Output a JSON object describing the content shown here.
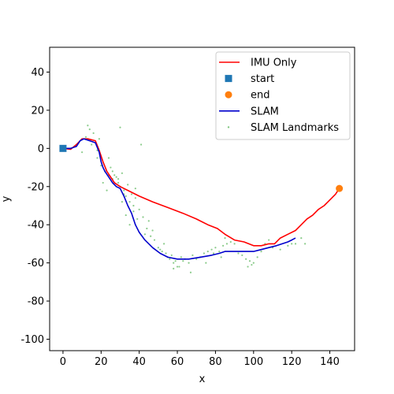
{
  "chart_data": {
    "type": "line",
    "xlabel": "x",
    "ylabel": "y",
    "xlim": [
      -7,
      153
    ],
    "ylim": [
      -106,
      53
    ],
    "x_ticks": [
      0,
      20,
      40,
      60,
      80,
      100,
      120,
      140
    ],
    "y_ticks": [
      40,
      20,
      0,
      -20,
      -40,
      -60,
      -80,
      -100
    ],
    "legend_position": "top-right",
    "series": [
      {
        "name": "IMU Only",
        "kind": "line",
        "color": "#ff0000",
        "x": [
          0,
          4,
          7,
          10,
          13,
          17,
          19,
          21,
          23,
          25,
          27,
          30,
          34,
          40,
          47,
          55,
          63,
          70,
          76,
          81,
          85,
          90,
          95,
          100,
          104,
          108,
          111,
          114,
          118,
          122,
          125,
          128,
          131,
          134,
          137,
          140,
          143,
          145
        ],
        "y": [
          0,
          -0.5,
          2,
          5,
          5,
          4,
          -1,
          -7,
          -12,
          -15,
          -18,
          -20,
          -22,
          -25,
          -28,
          -31,
          -34,
          -37,
          -40,
          -42,
          -45,
          -48,
          -49,
          -51,
          -51,
          -50,
          -50,
          -47,
          -45,
          -43,
          -40,
          -37,
          -35,
          -32,
          -30,
          -27,
          -24,
          -21
        ]
      },
      {
        "name": "start",
        "kind": "marker-square",
        "color": "#1f77b4",
        "x": [
          0
        ],
        "y": [
          0
        ]
      },
      {
        "name": "end",
        "kind": "marker-circle",
        "color": "#ff7f0e",
        "x": [
          145
        ],
        "y": [
          -21
        ]
      },
      {
        "name": "SLAM",
        "kind": "line",
        "color": "#0000cc",
        "x": [
          0,
          4,
          7,
          9,
          11,
          14,
          17,
          19,
          20,
          21,
          22,
          24,
          26,
          28,
          30,
          32,
          34,
          36,
          38,
          40,
          43,
          47,
          51,
          55,
          60,
          66,
          72,
          78,
          82,
          85,
          89,
          92,
          96,
          100,
          104,
          108,
          112,
          115,
          118,
          120,
          122
        ],
        "y": [
          0,
          0,
          1,
          4,
          5,
          4,
          3,
          -2,
          -7,
          -10,
          -12,
          -15,
          -18,
          -20,
          -21,
          -25,
          -30,
          -34,
          -40,
          -44,
          -48,
          -52,
          -55,
          -57,
          -58,
          -58,
          -57,
          -56,
          -55,
          -54,
          -54,
          -54,
          -54,
          -54,
          -53,
          -52,
          -51,
          -50,
          -49,
          -48,
          -47
        ]
      },
      {
        "name": "SLAM Landmarks",
        "kind": "scatter",
        "color": "#2ca02c",
        "x": [
          10,
          12,
          14,
          15,
          18,
          20,
          22,
          24,
          25,
          26,
          28,
          29,
          30,
          31,
          32,
          33,
          34,
          35,
          36,
          37,
          38,
          40,
          42,
          44,
          46,
          48,
          50,
          52,
          54,
          55,
          56,
          57,
          58,
          59,
          60,
          62,
          64,
          66,
          68,
          70,
          72,
          74,
          76,
          78,
          80,
          82,
          84,
          86,
          88,
          90,
          92,
          94,
          96,
          98,
          100,
          102,
          104,
          106,
          110,
          114,
          118,
          122,
          125,
          127,
          16,
          19,
          21,
          23,
          27,
          30,
          35,
          41,
          33,
          43,
          31,
          37,
          45,
          53,
          61,
          67,
          75,
          85,
          97,
          108,
          120,
          13,
          18,
          24,
          26,
          29,
          32,
          38,
          39,
          47,
          51,
          58,
          63,
          79,
          83,
          99
        ],
        "y": [
          -2,
          6,
          10,
          2,
          -5,
          -9,
          -12,
          -14,
          -10,
          -16,
          -15,
          -18,
          -20,
          -13,
          -22,
          -25,
          -19,
          -28,
          -24,
          -30,
          -26,
          -32,
          -36,
          -42,
          -46,
          -48,
          -52,
          -54,
          -55,
          -57,
          -58,
          -56,
          -60,
          -59,
          -62,
          -57,
          -58,
          -60,
          -56,
          -58,
          -57,
          -55,
          -54,
          -53,
          -52,
          -54,
          -51,
          -50,
          -49,
          -50,
          -55,
          -56,
          -58,
          -59,
          -60,
          -57,
          -54,
          -50,
          -52,
          -53,
          -51,
          -50,
          -47,
          -50,
          8,
          5,
          -18,
          -22,
          -14,
          11,
          -40,
          2,
          -35,
          -45,
          -28,
          -33,
          -38,
          -50,
          -62,
          -65,
          -60,
          -47,
          -62,
          -48,
          -50,
          12,
          -1,
          -5,
          -12,
          -16,
          -24,
          -21,
          -37,
          -43,
          -53,
          -63,
          -59,
          -55,
          -57,
          -61
        ]
      }
    ]
  }
}
